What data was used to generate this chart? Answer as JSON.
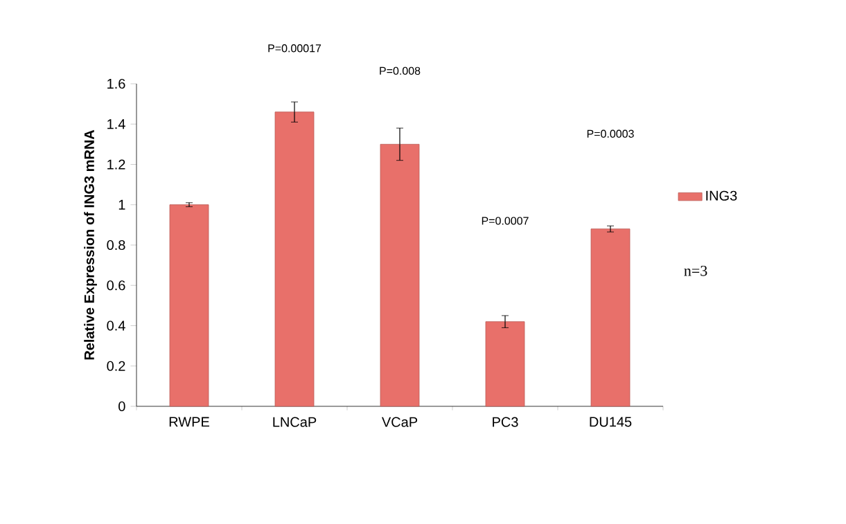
{
  "chart_data": {
    "type": "bar",
    "ylabel": "Relative Expression of ING3 mRNA",
    "categories": [
      "RWPE",
      "LNCaP",
      "VCaP",
      "PC3",
      "DU145"
    ],
    "series": [
      {
        "name": "ING3",
        "color": "#e8706a",
        "values": [
          1.0,
          1.46,
          1.3,
          0.42,
          0.88
        ],
        "errors": [
          0.01,
          0.05,
          0.08,
          0.03,
          0.015
        ]
      }
    ],
    "ylim": [
      0,
      1.6
    ],
    "yticks": [
      0,
      0.2,
      0.4,
      0.6,
      0.8,
      1,
      1.2,
      1.4,
      1.6
    ],
    "legend": "right",
    "grid": false,
    "annotations": [
      "P=0.00017",
      "P=0.008",
      "P=0.0007",
      "P=0.0003",
      "n=3"
    ]
  }
}
